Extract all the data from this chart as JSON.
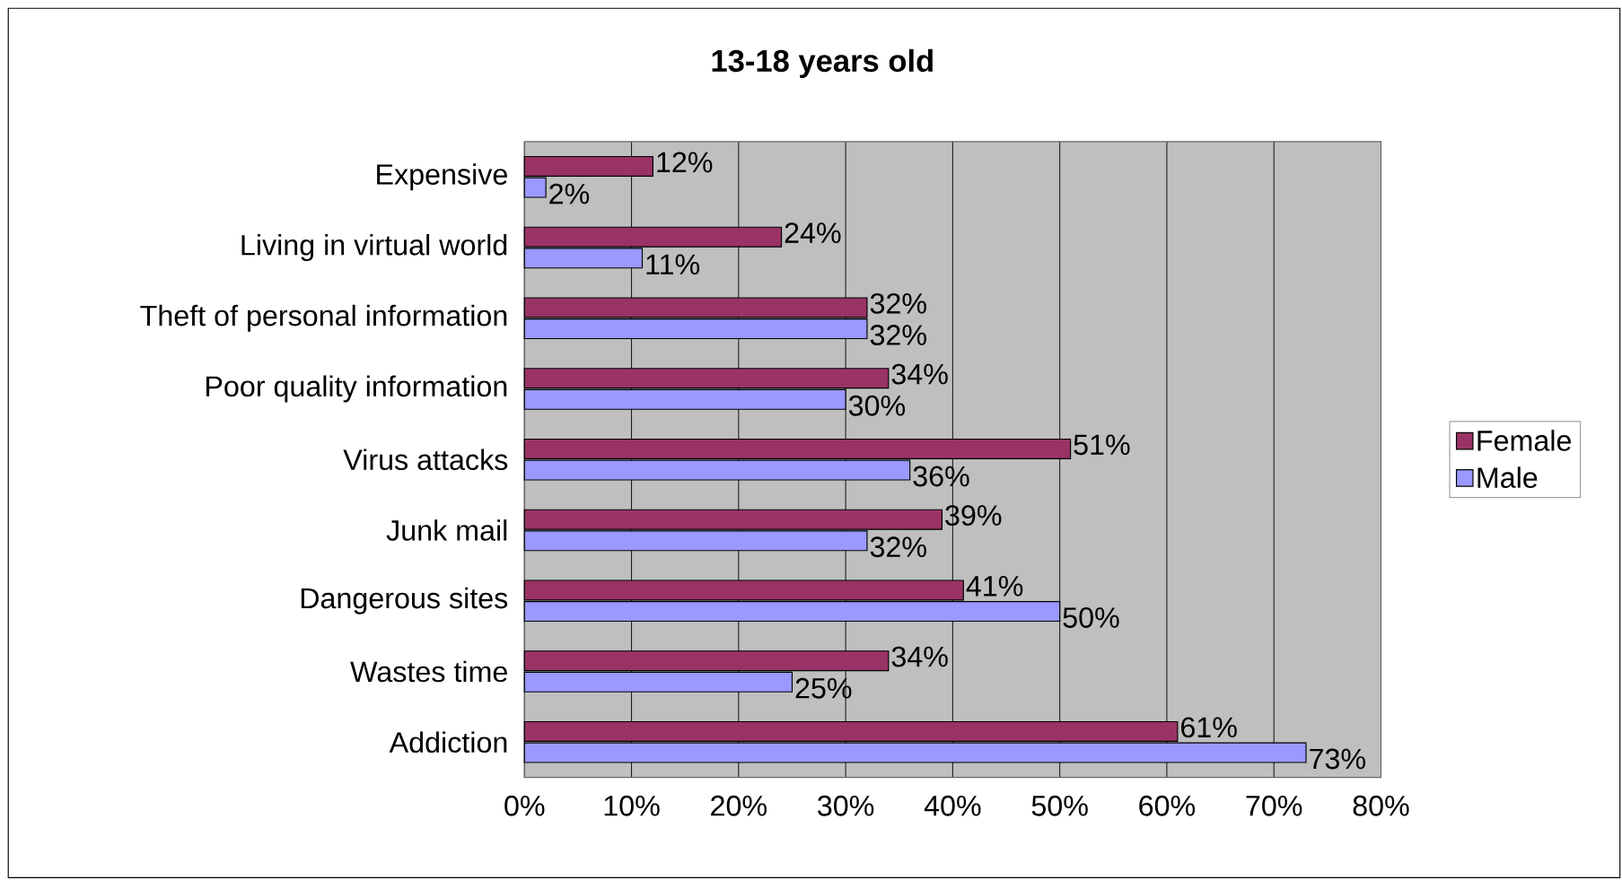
{
  "chart_data": {
    "type": "bar",
    "orientation": "horizontal",
    "title": "13-18 years old",
    "categories": [
      "Expensive",
      "Living in virtual world",
      "Theft of personal information",
      "Poor quality information",
      "Virus attacks",
      "Junk mail",
      "Dangerous sites",
      "Wastes time",
      "Addiction"
    ],
    "series": [
      {
        "name": "Female",
        "color": "#993366",
        "values": [
          12,
          24,
          32,
          34,
          51,
          39,
          41,
          34,
          61
        ],
        "value_labels": [
          "12%",
          "24%",
          "32%",
          "34%",
          "51%",
          "39%",
          "41%",
          "34%",
          "61%"
        ]
      },
      {
        "name": "Male",
        "color": "#9999ff",
        "values": [
          2,
          11,
          32,
          30,
          36,
          32,
          50,
          25,
          73
        ],
        "value_labels": [
          "2%",
          "11%",
          "32%",
          "30%",
          "36%",
          "32%",
          "50%",
          "25%",
          "73%"
        ]
      }
    ],
    "xlim": [
      0,
      80
    ],
    "xticks": [
      {
        "value": 0,
        "label": "0%"
      },
      {
        "value": 10,
        "label": "10%"
      },
      {
        "value": 20,
        "label": "20%"
      },
      {
        "value": 30,
        "label": "30%"
      },
      {
        "value": 40,
        "label": "40%"
      },
      {
        "value": 50,
        "label": "50%"
      },
      {
        "value": 60,
        "label": "60%"
      },
      {
        "value": 70,
        "label": "70%"
      },
      {
        "value": 80,
        "label": "80%"
      }
    ],
    "grid": "x",
    "legend": "right"
  }
}
